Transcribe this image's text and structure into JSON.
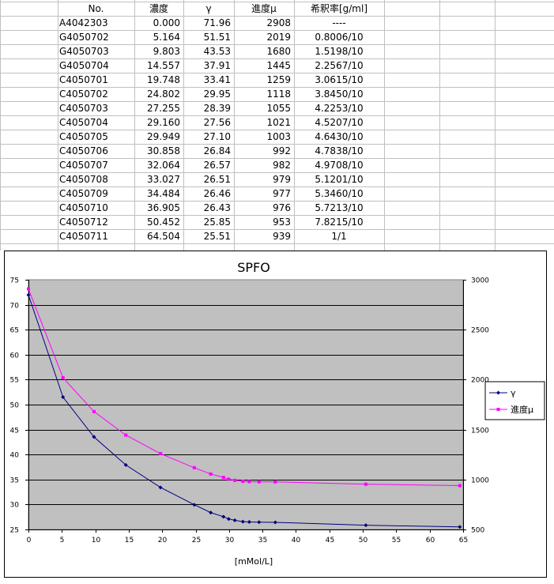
{
  "table": {
    "headers": [
      "No.",
      "濃度",
      "γ",
      "進度μ",
      "希釈率[g/ml]"
    ],
    "rows": [
      [
        "A4042303",
        "0.000",
        "71.96",
        "2908",
        "----"
      ],
      [
        "G4050702",
        "5.164",
        "51.51",
        "2019",
        "0.8006/10"
      ],
      [
        "G4050703",
        "9.803",
        "43.53",
        "1680",
        "1.5198/10"
      ],
      [
        "G4050704",
        "14.557",
        "37.91",
        "1445",
        "2.2567/10"
      ],
      [
        "C4050701",
        "19.748",
        "33.41",
        "1259",
        "3.0615/10"
      ],
      [
        "C4050702",
        "24.802",
        "29.95",
        "1118",
        "3.8450/10"
      ],
      [
        "C4050703",
        "27.255",
        "28.39",
        "1055",
        "4.2253/10"
      ],
      [
        "C4050704",
        "29.160",
        "27.56",
        "1021",
        "4.5207/10"
      ],
      [
        "C4050705",
        "29.949",
        "27.10",
        "1003",
        "4.6430/10"
      ],
      [
        "C4050706",
        "30.858",
        "26.84",
        "992",
        "4.7838/10"
      ],
      [
        "C4050707",
        "32.064",
        "26.57",
        "982",
        "4.9708/10"
      ],
      [
        "C4050708",
        "33.027",
        "26.51",
        "979",
        "5.1201/10"
      ],
      [
        "C4050709",
        "34.484",
        "26.46",
        "977",
        "5.3460/10"
      ],
      [
        "C4050710",
        "36.905",
        "26.43",
        "976",
        "5.7213/10"
      ],
      [
        "C4050712",
        "50.452",
        "25.85",
        "953",
        "7.8215/10"
      ],
      [
        "C4050711",
        "64.504",
        "25.51",
        "939",
        "1/1"
      ]
    ]
  },
  "chart_data": {
    "type": "line",
    "title": "SPFO",
    "xlabel": "[mMol/L]",
    "ylabel": "",
    "y2label": "",
    "xlim": [
      0,
      65
    ],
    "ylim": [
      25,
      75
    ],
    "y2lim": [
      500,
      3000
    ],
    "xticks": [
      "0",
      "5",
      "10",
      "15",
      "20",
      "25",
      "30",
      "35",
      "40",
      "45",
      "50",
      "55",
      "60",
      "65"
    ],
    "yticks": [
      "25",
      "30",
      "35",
      "40",
      "45",
      "50",
      "55",
      "60",
      "65",
      "70",
      "75"
    ],
    "y2ticks": [
      "500",
      "1000",
      "1500",
      "2000",
      "2500",
      "3000"
    ],
    "grid": true,
    "legend_position": "right",
    "plot_background": "#c0c0c0",
    "series": [
      {
        "name": "γ",
        "axis": "left",
        "color": "#000080",
        "marker": "diamond",
        "x": [
          0.0,
          5.164,
          9.803,
          14.557,
          19.748,
          24.802,
          27.255,
          29.16,
          29.949,
          30.858,
          32.064,
          33.027,
          34.484,
          36.905,
          50.452,
          64.504
        ],
        "y": [
          71.96,
          51.51,
          43.53,
          37.91,
          33.41,
          29.95,
          28.39,
          27.56,
          27.1,
          26.84,
          26.57,
          26.51,
          26.46,
          26.43,
          25.85,
          25.51
        ]
      },
      {
        "name": "進度μ",
        "axis": "right",
        "color": "#ff00ff",
        "marker": "square",
        "x": [
          0.0,
          5.164,
          9.803,
          14.557,
          19.748,
          24.802,
          27.255,
          29.16,
          29.949,
          30.858,
          32.064,
          33.027,
          34.484,
          36.905,
          50.452,
          64.504
        ],
        "y": [
          2908,
          2019,
          1680,
          1445,
          1259,
          1118,
          1055,
          1021,
          1003,
          992,
          982,
          979,
          977,
          976,
          953,
          939
        ]
      }
    ]
  }
}
